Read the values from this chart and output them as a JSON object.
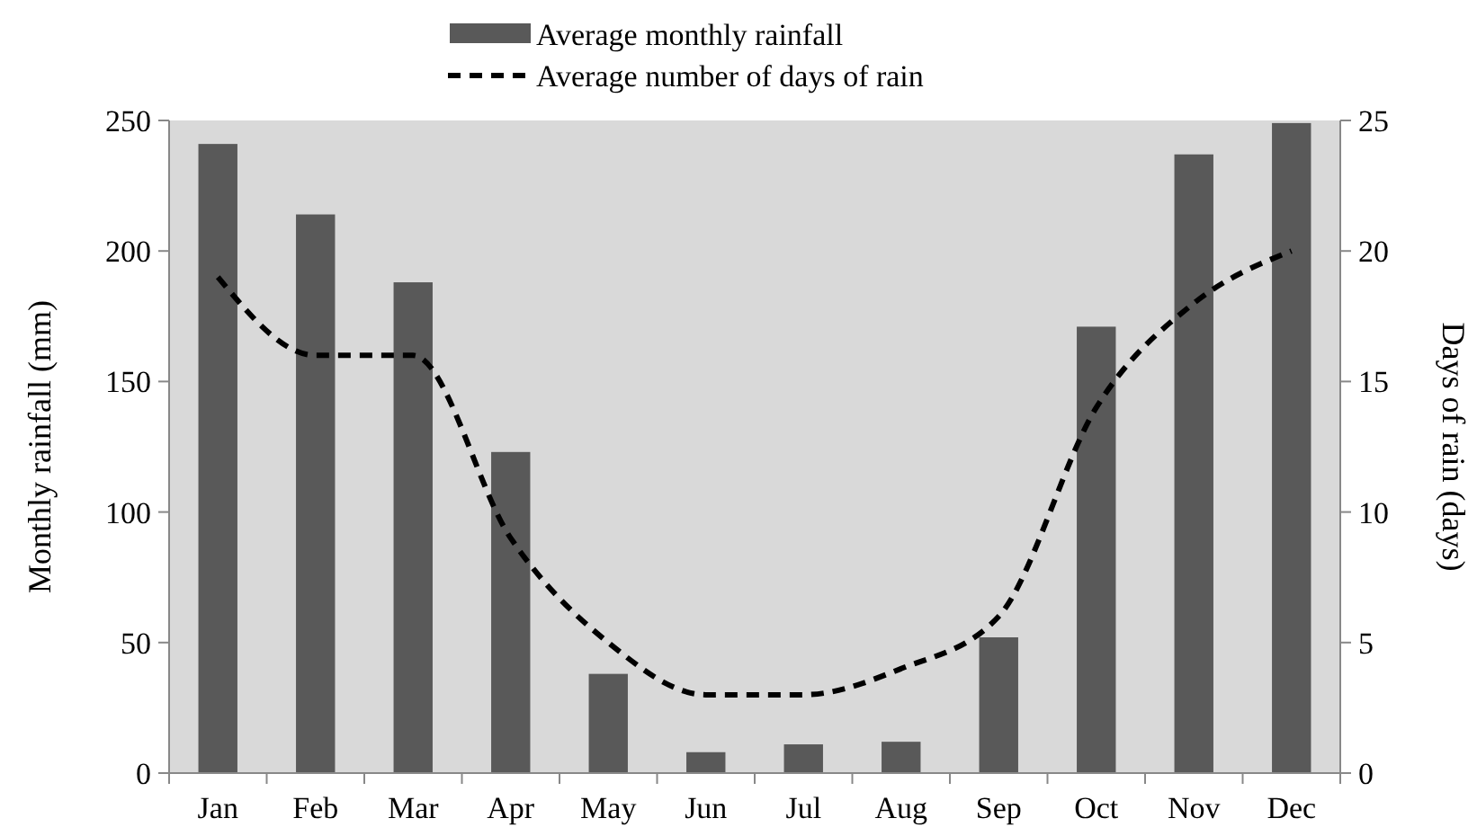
{
  "chart_data": {
    "type": "bar",
    "categories": [
      "Jan",
      "Feb",
      "Mar",
      "Apr",
      "May",
      "Jun",
      "Jul",
      "Aug",
      "Sep",
      "Oct",
      "Nov",
      "Dec"
    ],
    "series": [
      {
        "name": "Average monthly rainfall",
        "color": "#595959",
        "values": [
          241,
          214,
          188,
          123,
          38,
          8,
          11,
          12,
          52,
          171,
          237,
          249
        ]
      },
      {
        "name": "Average number of days of rain",
        "type": "line",
        "axis": "y2",
        "color": "#000000",
        "line_style": "dashed",
        "values": [
          19,
          16,
          16,
          9,
          5,
          3,
          3,
          4,
          6,
          14,
          18,
          20
        ]
      }
    ],
    "ylabel": "Monthly rainfall (mm)",
    "y2label": "Days of rain (days)",
    "ylim": [
      0,
      250
    ],
    "yticks": [
      0,
      50,
      100,
      150,
      200,
      250
    ],
    "y2lim": [
      0,
      25
    ],
    "y2ticks": [
      0,
      5,
      10,
      15,
      20,
      25
    ],
    "grid": false,
    "legend": "top"
  }
}
